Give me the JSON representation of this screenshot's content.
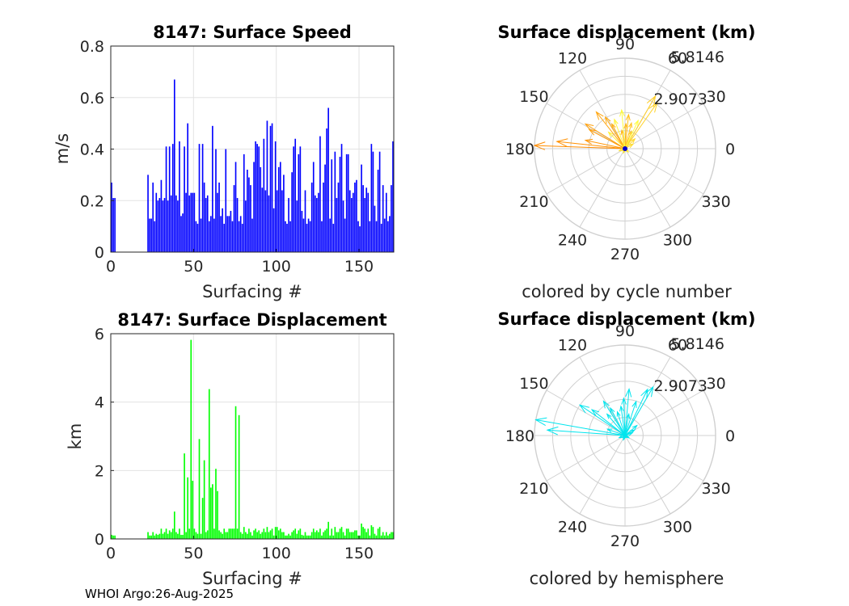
{
  "colors": {
    "speed_bars": "#0000ff",
    "displacement_bars": "#00ff00",
    "hemisphere_arrows": "#00e5ee",
    "cycle_arrows_early": "#ff8c00",
    "cycle_arrows_late": "#ffff40",
    "polar_grid": "#d0d0d0",
    "axis_box": "#262626"
  },
  "chart_data": [
    {
      "type": "bar",
      "title": "8147: Surface Speed",
      "xlabel": "Surfacing #",
      "ylabel": "m/s",
      "xlim": [
        0,
        171
      ],
      "ylim": [
        0,
        0.8
      ],
      "xticks": [
        "0",
        "50",
        "100",
        "150"
      ],
      "yticks": [
        "0",
        "0.2",
        "0.4",
        "0.6",
        "0.8"
      ],
      "grid": true,
      "x": [
        0,
        1,
        2,
        3,
        4,
        5,
        6,
        7,
        8,
        9,
        10,
        11,
        12,
        13,
        14,
        15,
        16,
        17,
        18,
        19,
        20,
        21,
        22,
        23,
        24,
        25,
        26,
        27,
        28,
        29,
        30,
        31,
        32,
        33,
        34,
        35,
        36,
        37,
        38,
        39,
        40,
        41,
        42,
        43,
        44,
        45,
        46,
        47,
        48,
        49,
        50,
        51,
        52,
        53,
        54,
        55,
        56,
        57,
        58,
        59,
        60,
        61,
        62,
        63,
        64,
        65,
        66,
        67,
        68,
        69,
        70,
        71,
        72,
        73,
        74,
        75,
        76,
        77,
        78,
        79,
        80,
        81,
        82,
        83,
        84,
        85,
        86,
        87,
        88,
        89,
        90,
        91,
        92,
        93,
        94,
        95,
        96,
        97,
        98,
        99,
        100,
        101,
        102,
        103,
        104,
        105,
        106,
        107,
        108,
        109,
        110,
        111,
        112,
        113,
        114,
        115,
        116,
        117,
        118,
        119,
        120,
        121,
        122,
        123,
        124,
        125,
        126,
        127,
        128,
        129,
        130,
        131,
        132,
        133,
        134,
        135,
        136,
        137,
        138,
        139,
        140,
        141,
        142,
        143,
        144,
        145,
        146,
        147,
        148,
        149,
        150,
        151,
        152,
        153,
        154,
        155,
        156,
        157,
        158,
        159,
        160,
        161,
        162,
        163,
        164,
        165,
        166,
        167,
        168,
        169,
        170
      ],
      "values": [
        0.27,
        0.21,
        0.21,
        0,
        0,
        0,
        0,
        0,
        0,
        0,
        0,
        0,
        0,
        0,
        0,
        0,
        0,
        0,
        0,
        0,
        0,
        0,
        0.3,
        0.13,
        0.13,
        0.27,
        0.12,
        0.23,
        0.2,
        0.21,
        0.28,
        0.2,
        0.21,
        0.41,
        0.2,
        0.41,
        0.22,
        0.42,
        0.67,
        0.22,
        0.2,
        0.43,
        0.14,
        0.15,
        0.41,
        0.23,
        0.5,
        0.22,
        0.23,
        0.23,
        0.23,
        0.12,
        0.11,
        0.42,
        0.13,
        0.42,
        0.27,
        0.21,
        0.22,
        0.12,
        0.14,
        0.49,
        0.13,
        0.4,
        0.23,
        0.27,
        0.14,
        0.17,
        0.11,
        0.4,
        0.14,
        0.14,
        0.16,
        0.12,
        0.26,
        0.35,
        0.21,
        0.12,
        0.14,
        0.11,
        0.38,
        0.2,
        0.32,
        0.29,
        0.26,
        0.13,
        0.35,
        0.43,
        0.42,
        0.41,
        0.33,
        0.25,
        0.44,
        0.24,
        0.51,
        0.22,
        0.49,
        0.5,
        0.17,
        0.43,
        0.24,
        0.33,
        0.35,
        0.24,
        0.3,
        0.12,
        0.11,
        0.21,
        0.12,
        0.31,
        0.41,
        0.44,
        0.2,
        0.38,
        0.41,
        0.16,
        0.13,
        0.24,
        0.11,
        0.13,
        0.12,
        0.27,
        0.35,
        0.22,
        0.21,
        0.23,
        0.45,
        0.12,
        0.27,
        0.34,
        0.48,
        0.56,
        0.13,
        0.36,
        0.11,
        0.39,
        0.21,
        0.27,
        0.37,
        0.42,
        0.2,
        0.13,
        0.38,
        0.38,
        0.24,
        0.21,
        0.23,
        0.27,
        0.28,
        0.12,
        0.1,
        0.34,
        0.26,
        0.21,
        0.25,
        0.23,
        0.12,
        0.42,
        0.39,
        0.18,
        0.12,
        0.32,
        0.39,
        0.11,
        0.26,
        0.13,
        0.23,
        0.12,
        0.14,
        0.26,
        0.43
      ]
    },
    {
      "type": "bar",
      "title": "8147: Surface Displacement",
      "xlabel": "Surfacing #",
      "ylabel": "km",
      "xlim": [
        0,
        171
      ],
      "ylim": [
        0,
        6
      ],
      "xticks": [
        "0",
        "50",
        "100",
        "150"
      ],
      "yticks": [
        "0",
        "2",
        "4",
        "6"
      ],
      "grid": true,
      "x": [
        0,
        1,
        2,
        3,
        4,
        5,
        6,
        7,
        8,
        9,
        10,
        11,
        12,
        13,
        14,
        15,
        16,
        17,
        18,
        19,
        20,
        21,
        22,
        23,
        24,
        25,
        26,
        27,
        28,
        29,
        30,
        31,
        32,
        33,
        34,
        35,
        36,
        37,
        38,
        39,
        40,
        41,
        42,
        43,
        44,
        45,
        46,
        47,
        48,
        49,
        50,
        51,
        52,
        53,
        54,
        55,
        56,
        57,
        58,
        59,
        60,
        61,
        62,
        63,
        64,
        65,
        66,
        67,
        68,
        69,
        70,
        71,
        72,
        73,
        74,
        75,
        76,
        77,
        78,
        79,
        80,
        81,
        82,
        83,
        84,
        85,
        86,
        87,
        88,
        89,
        90,
        91,
        92,
        93,
        94,
        95,
        96,
        97,
        98,
        99,
        100,
        101,
        102,
        103,
        104,
        105,
        106,
        107,
        108,
        109,
        110,
        111,
        112,
        113,
        114,
        115,
        116,
        117,
        118,
        119,
        120,
        121,
        122,
        123,
        124,
        125,
        126,
        127,
        128,
        129,
        130,
        131,
        132,
        133,
        134,
        135,
        136,
        137,
        138,
        139,
        140,
        141,
        142,
        143,
        144,
        145,
        146,
        147,
        148,
        149,
        150,
        151,
        152,
        153,
        154,
        155,
        156,
        157,
        158,
        159,
        160,
        161,
        162,
        163,
        164,
        165,
        166,
        167,
        168,
        169,
        170
      ],
      "values": [
        0.12,
        0.1,
        0.1,
        0,
        0,
        0,
        0,
        0,
        0,
        0,
        0,
        0,
        0,
        0,
        0,
        0,
        0,
        0,
        0,
        0,
        0,
        0,
        0.2,
        0.1,
        0.1,
        0.2,
        0.1,
        0.15,
        0.12,
        0.15,
        0.3,
        0.15,
        0.2,
        0.3,
        0.15,
        0.25,
        0.2,
        0.3,
        0.8,
        0.2,
        0.15,
        0.3,
        0.12,
        0.12,
        2.5,
        0.2,
        1.8,
        0.3,
        5.82,
        1.7,
        0.3,
        0.2,
        0.15,
        2.92,
        0.15,
        1.2,
        2.3,
        0.2,
        0.25,
        4.38,
        1.5,
        1.6,
        0.3,
        2.05,
        1.4,
        0.25,
        0.2,
        0.15,
        0.3,
        0.2,
        0.2,
        0.3,
        0.3,
        0.3,
        0.3,
        3.88,
        0.3,
        3.62,
        0.2,
        0.15,
        0.35,
        0.2,
        0.15,
        0.3,
        0.2,
        0.1,
        0.25,
        0.3,
        0.2,
        0.25,
        0.15,
        0.2,
        0.3,
        0.2,
        0.35,
        0.2,
        0.25,
        0.3,
        0.1,
        0.35,
        0.35,
        0.25,
        0.3,
        0.2,
        0.2,
        0.1,
        0.1,
        0.15,
        0.1,
        0.2,
        0.25,
        0.3,
        0.15,
        0.25,
        0.3,
        0.12,
        0.1,
        0.2,
        0.1,
        0.1,
        0.1,
        0.2,
        0.3,
        0.2,
        0.25,
        0.2,
        0.3,
        0.1,
        0.2,
        0.25,
        0.3,
        0.5,
        0.1,
        0.3,
        0.1,
        0.35,
        0.2,
        0.2,
        0.3,
        0.35,
        0.2,
        0.1,
        0.3,
        0.3,
        0.2,
        0.2,
        0.2,
        0.25,
        0.25,
        0.1,
        0.1,
        0.45,
        0.35,
        0.3,
        0.2,
        0.3,
        0.1,
        0.4,
        0.35,
        0.15,
        0.1,
        0.3,
        0.35,
        0.1,
        0.2,
        0.1,
        0.2,
        0.1,
        0.15,
        0.2,
        0.2
      ]
    },
    {
      "type": "polar-arrows",
      "title": "Surface displacement (km)",
      "caption": "colored by cycle number",
      "rlim": [
        0,
        5.8146
      ],
      "rtick_labels": [
        "2.9073",
        "5.8146"
      ],
      "theta_labels": [
        "0",
        "30",
        "60",
        "90",
        "120",
        "150",
        "180",
        "210",
        "240",
        "270",
        "300",
        "330"
      ],
      "color_by": "cycle number",
      "arrows": [
        {
          "angle": 178,
          "r": 5.82
        },
        {
          "angle": 174,
          "r": 4.4
        },
        {
          "angle": 168,
          "r": 2.6
        },
        {
          "angle": 152,
          "r": 2.6
        },
        {
          "angle": 148,
          "r": 3.0
        },
        {
          "angle": 128,
          "r": 3.0
        },
        {
          "angle": 122,
          "r": 2.4
        },
        {
          "angle": 118,
          "r": 1.8
        },
        {
          "angle": 100,
          "r": 1.2
        },
        {
          "angle": 88,
          "r": 1.6
        },
        {
          "angle": 84,
          "r": 2.2
        },
        {
          "angle": 76,
          "r": 1.7
        },
        {
          "angle": 70,
          "r": 1.2
        },
        {
          "angle": 60,
          "r": 3.9
        },
        {
          "angle": 55,
          "r": 3.6
        },
        {
          "angle": 45,
          "r": 0.9
        },
        {
          "angle": 30,
          "r": 0.6
        },
        {
          "angle": 200,
          "r": 0.4
        },
        {
          "angle": 250,
          "r": 0.3
        },
        {
          "angle": 315,
          "r": 0.3
        },
        {
          "angle": 135,
          "r": 1.5
        },
        {
          "angle": 110,
          "r": 2.0
        },
        {
          "angle": 95,
          "r": 2.5
        },
        {
          "angle": 65,
          "r": 2.0
        }
      ]
    },
    {
      "type": "polar-arrows",
      "title": "Surface displacement (km)",
      "caption": "colored by hemisphere",
      "rlim": [
        0,
        5.8146
      ],
      "rtick_labels": [
        "2.9073",
        "5.8146"
      ],
      "theta_labels": [
        "0",
        "30",
        "60",
        "90",
        "120",
        "150",
        "180",
        "210",
        "240",
        "270",
        "300",
        "330"
      ],
      "color_by": "hemisphere",
      "arrows": [
        {
          "angle": 170,
          "r": 5.82
        },
        {
          "angle": 176,
          "r": 5.0
        },
        {
          "angle": 146,
          "r": 3.5
        },
        {
          "angle": 142,
          "r": 2.7
        },
        {
          "angle": 122,
          "r": 2.6
        },
        {
          "angle": 118,
          "r": 2.0
        },
        {
          "angle": 108,
          "r": 1.6
        },
        {
          "angle": 98,
          "r": 1.9
        },
        {
          "angle": 92,
          "r": 2.4
        },
        {
          "angle": 80,
          "r": 1.4
        },
        {
          "angle": 72,
          "r": 2.3
        },
        {
          "angle": 64,
          "r": 3.3
        },
        {
          "angle": 60,
          "r": 3.6
        },
        {
          "angle": 40,
          "r": 1.0
        },
        {
          "angle": 30,
          "r": 0.7
        },
        {
          "angle": 20,
          "r": 0.5
        },
        {
          "angle": 160,
          "r": 1.2
        },
        {
          "angle": 200,
          "r": 0.4
        },
        {
          "angle": 250,
          "r": 0.3
        },
        {
          "angle": 330,
          "r": 0.3
        },
        {
          "angle": 130,
          "r": 1.8
        },
        {
          "angle": 85,
          "r": 3.0
        }
      ]
    }
  ],
  "footer": "WHOI Argo:26-Aug-2025"
}
